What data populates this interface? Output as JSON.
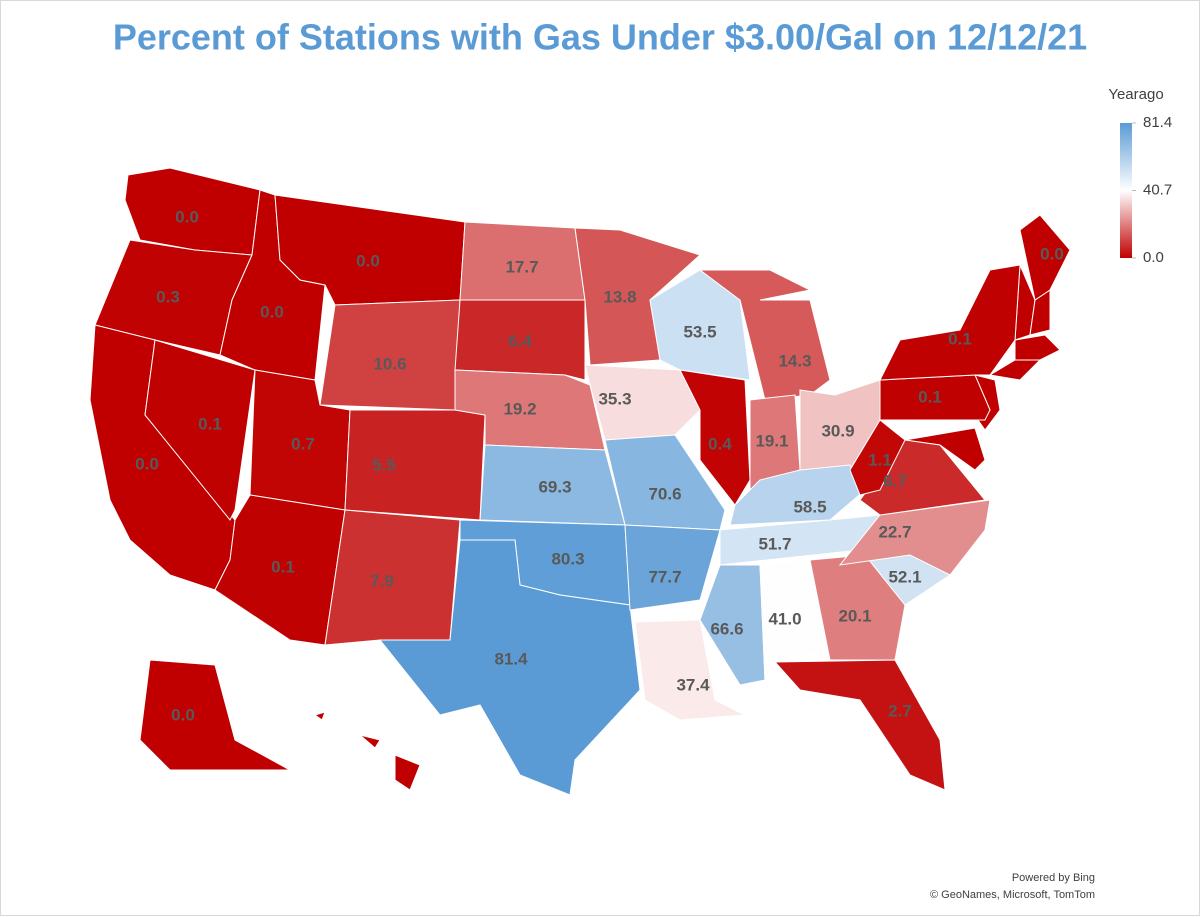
{
  "chart_data": {
    "type": "choropleth",
    "title": "Percent of Stations with Gas Under $3.00/Gal on 12/12/21",
    "values": [
      0,
      0.3,
      0,
      0,
      0.1,
      0,
      10.6,
      0.7,
      0.1,
      5.5,
      7.9,
      17.7,
      6.4,
      19.2,
      69.3,
      80.3,
      81.4,
      13.8,
      35.3,
      70.6,
      77.7,
      37.4,
      53.5,
      0.4,
      14.3,
      19.1,
      30.9,
      58.5,
      51.7,
      66.6,
      41.0,
      20.1,
      2.7,
      52.1,
      22.7,
      6.7,
      1.1,
      0.1,
      0.1,
      0,
      0
    ],
    "value_labels": [
      "0.0",
      "0.3",
      "0.0",
      "0.0",
      "0.1",
      "0.0",
      "10.6",
      "0.7",
      "0.1",
      "5.5",
      "7.9",
      "17.7",
      "6.4",
      "19.2",
      "69.3",
      "80.3",
      "81.4",
      "13.8",
      "35.3",
      "70.6",
      "77.7",
      "37.4",
      "53.5",
      "0.4",
      "14.3",
      "19.1",
      "30.9",
      "58.5",
      "51.7",
      "66.6",
      "41.0",
      "20.1",
      "2.7",
      "52.1",
      "22.7",
      "6.7",
      "1.1",
      "0.1",
      "0.1",
      "0.0",
      "0.0"
    ],
    "colorscale": [
      "#c00000",
      "#ffffff",
      "#5b9bd5"
    ],
    "legend": {
      "title": "Yearago",
      "ticks": [
        81.4,
        40.7,
        {
          "value": 0,
          "label": "0.0"
        }
      ]
    },
    "attribution": [
      "Powered by Bing",
      "© GeoNames, Microsoft, TomTom"
    ]
  }
}
